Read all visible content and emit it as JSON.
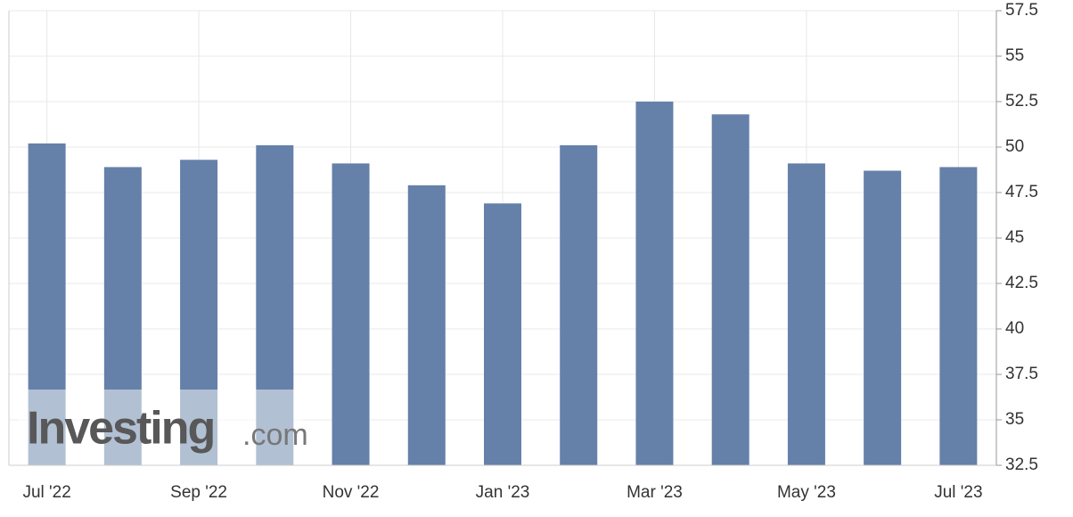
{
  "chart_data": {
    "type": "bar",
    "categories": [
      "Jul '22",
      null,
      "Sep '22",
      null,
      "Nov '22",
      null,
      "Jan '23",
      null,
      "Mar '23",
      null,
      "May '23",
      null,
      "Jul '23"
    ],
    "values": [
      50.2,
      48.9,
      49.3,
      50.1,
      49.1,
      47.9,
      46.9,
      50.1,
      52.5,
      51.8,
      49.1,
      48.7,
      48.9
    ],
    "color": "#6580a9",
    "ylim": [
      32.5,
      57.5
    ],
    "yticks": [
      32.5,
      35,
      37.5,
      40,
      42.5,
      45,
      47.5,
      50,
      52.5,
      55,
      57.5
    ],
    "grid": true,
    "watermark": [
      "Investing",
      ".com"
    ]
  }
}
